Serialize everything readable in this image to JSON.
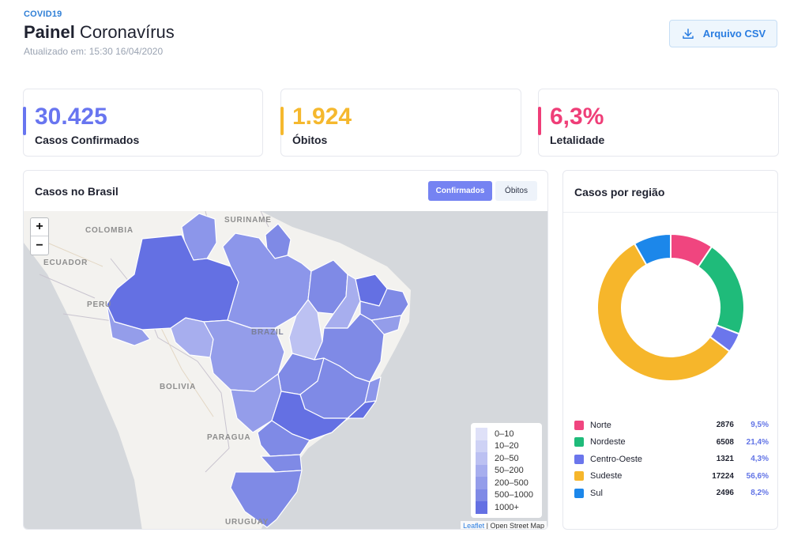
{
  "header": {
    "kicker": "COVID19",
    "title_bold": "Painel",
    "title_rest": " Coronavírus",
    "updated_label": "Atualizado em:",
    "updated_value": "15:30 16/04/2020"
  },
  "toolbar": {
    "csv_label": "Arquivo CSV",
    "csv_icon": "download-icon"
  },
  "stats": [
    {
      "value": "30.425",
      "label": "Casos Confirmados",
      "color": "#6875f0"
    },
    {
      "value": "1.924",
      "label": "Óbitos",
      "color": "#f5b82e"
    },
    {
      "value": "6,3%",
      "label": "Letalidade",
      "color": "#ef3e78"
    }
  ],
  "map": {
    "title": "Casos no Brasil",
    "toggle_active": "Confirmados",
    "toggle_inactive": "Óbitos",
    "zoom_in": "+",
    "zoom_out": "−",
    "country_labels": {
      "suriname": "SURINAME",
      "colombia": "COLOMBIA",
      "ecuador": "ECUADOR",
      "peru": "PERU",
      "brazil": "BRAZIL",
      "bolivia": "BOLIVIA",
      "paraguay": "PARAGUA",
      "uruguay": "URUGUAY"
    },
    "legend": [
      {
        "label": "0–10",
        "color": "#dfe1f8"
      },
      {
        "label": "10–20",
        "color": "#ced2f5"
      },
      {
        "label": "20–50",
        "color": "#bcc1f2"
      },
      {
        "label": "50–200",
        "color": "#a7aeee"
      },
      {
        "label": "200–500",
        "color": "#949dea"
      },
      {
        "label": "500–1000",
        "color": "#7f8ae6"
      },
      {
        "label": "1000+",
        "color": "#6470e3"
      }
    ],
    "attribution_leaflet": "Leaflet",
    "attribution_osm": " | Open Street Map"
  },
  "regions": {
    "title": "Casos por região",
    "chart_data": {
      "type": "pie",
      "categories": [
        "Norte",
        "Nordeste",
        "Centro-Oeste",
        "Sudeste",
        "Sul"
      ],
      "values": [
        2876,
        6508,
        1321,
        17224,
        2496
      ],
      "percent_labels": [
        "9,5%",
        "21,4%",
        "4,3%",
        "56,6%",
        "8,2%"
      ],
      "colors": [
        "#f0457f",
        "#1fbb7a",
        "#6b76ec",
        "#f6b62b",
        "#1c87ea"
      ]
    }
  }
}
